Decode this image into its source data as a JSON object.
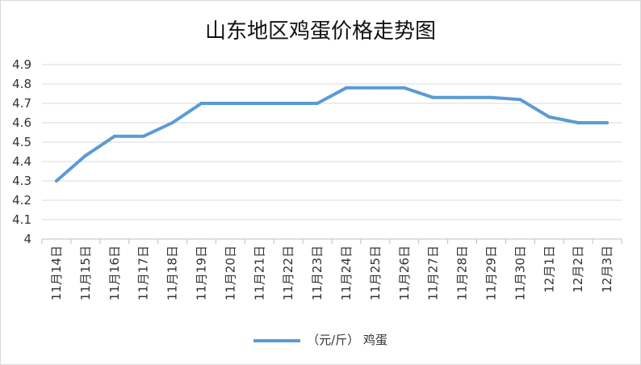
{
  "chart_data": {
    "type": "line",
    "title": "山东地区鸡蛋价格走势图",
    "categories": [
      "11月14日",
      "11月15日",
      "11月16日",
      "11月17日",
      "11月18日",
      "11月19日",
      "11月20日",
      "11月21日",
      "11月22日",
      "11月23日",
      "11月24日",
      "11月25日",
      "11月26日",
      "11月27日",
      "11月28日",
      "11月29日",
      "11月30日",
      "12月1日",
      "12月2日",
      "12月3日"
    ],
    "series": [
      {
        "name": "（元/斤） 鸡蛋",
        "color": "#5b9bd5",
        "values": [
          4.3,
          4.43,
          4.53,
          4.53,
          4.6,
          4.7,
          4.7,
          4.7,
          4.7,
          4.7,
          4.78,
          4.78,
          4.78,
          4.73,
          4.73,
          4.73,
          4.72,
          4.63,
          4.6,
          4.6
        ]
      }
    ],
    "ylim": [
      4,
      4.9
    ],
    "yticks": [
      "4",
      "4.1",
      "4.2",
      "4.3",
      "4.4",
      "4.5",
      "4.6",
      "4.7",
      "4.8",
      "4.9"
    ],
    "grid": true,
    "legend_position": "bottom"
  }
}
